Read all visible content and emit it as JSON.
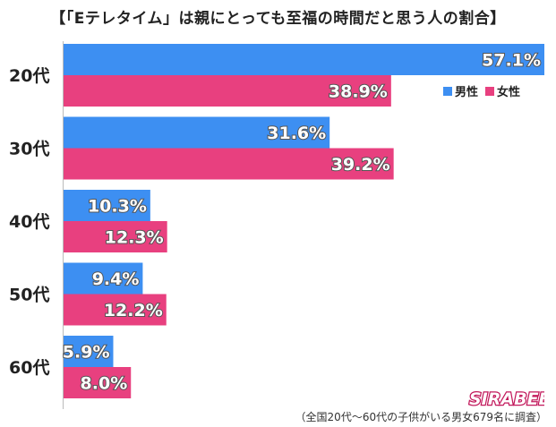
{
  "title": "【「Eテレタイム」は親にとっても至福の時間だと思う人の割合】",
  "footnote": "（全国20代〜60代の子供がいる男女679名に調査）",
  "legend": {
    "male": "男性",
    "female": "女性"
  },
  "colors": {
    "male": "#3d8ff2",
    "female": "#e8407f"
  },
  "logo": "SIRABEE",
  "chart_data": {
    "type": "bar",
    "orientation": "horizontal",
    "categories": [
      "20代",
      "30代",
      "40代",
      "50代",
      "60代"
    ],
    "series": [
      {
        "name": "男性",
        "values": [
          57.1,
          31.6,
          10.3,
          9.4,
          5.9
        ],
        "labels": [
          "57.1%",
          "31.6%",
          "10.3%",
          "9.4%",
          "5.9%"
        ]
      },
      {
        "name": "女性",
        "values": [
          38.9,
          39.2,
          12.3,
          12.2,
          8.0
        ],
        "labels": [
          "38.9%",
          "39.2%",
          "12.3%",
          "12.2%",
          "8.0%"
        ]
      }
    ],
    "xlim": [
      0,
      57.1
    ],
    "legend_position": "top-right",
    "grid": false
  }
}
